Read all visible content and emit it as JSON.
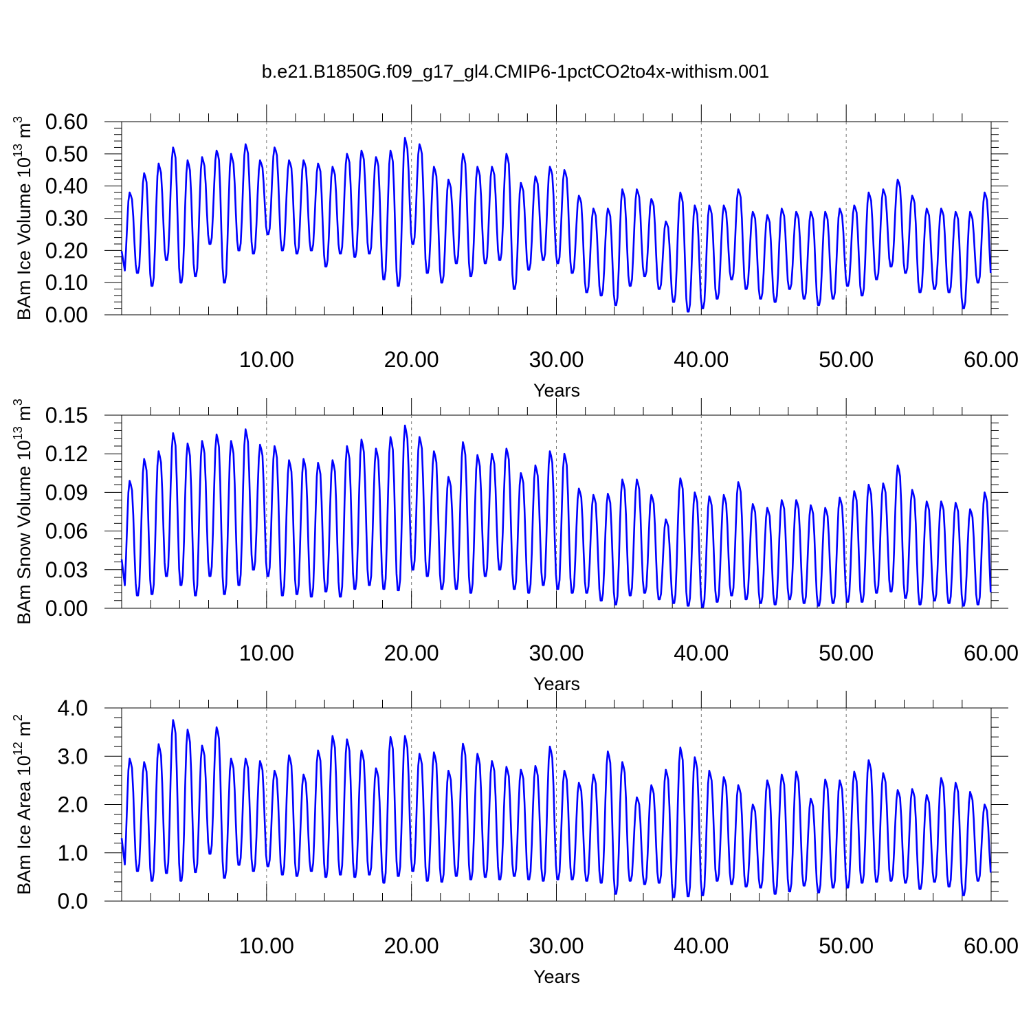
{
  "chart_title": "b.e21.B1850G.f09_g17_gl4.CMIP6-1pctCO2to4x-withism.001",
  "chart_data": [
    {
      "type": "line",
      "title": "b.e21.B1850G.f09_g17_gl4.CMIP6-1pctCO2to4x-withism.001",
      "xlabel": "Years",
      "ylabel": "BAm Ice Volume 10¹³ m³",
      "ylabel_parts": {
        "main": "BAm Ice Volume 10",
        "exp": "13",
        "unit": " m",
        "unit_exp": "3"
      },
      "xlim": [
        0.0,
        60.0
      ],
      "ylim": [
        0.0,
        0.6
      ],
      "xticks": [
        "10.00",
        "20.00",
        "30.00",
        "40.00",
        "50.00",
        "60.00"
      ],
      "yticks": [
        "0.00",
        "0.10",
        "0.20",
        "0.30",
        "0.40",
        "0.50",
        "0.60"
      ],
      "vertical_reference_lines_at": [
        10,
        20,
        30,
        40,
        50
      ],
      "series": [
        {
          "color": "#0000ff",
          "seasonal_cycle_per_year": true,
          "annual_peaks": [
            0.38,
            0.44,
            0.47,
            0.52,
            0.48,
            0.49,
            0.51,
            0.5,
            0.53,
            0.48,
            0.52,
            0.48,
            0.48,
            0.47,
            0.46,
            0.5,
            0.51,
            0.49,
            0.51,
            0.55,
            0.53,
            0.46,
            0.42,
            0.5,
            0.46,
            0.46,
            0.5,
            0.41,
            0.43,
            0.46,
            0.45,
            0.37,
            0.33,
            0.33,
            0.39,
            0.39,
            0.36,
            0.29,
            0.38,
            0.34,
            0.34,
            0.34,
            0.39,
            0.32,
            0.31,
            0.33,
            0.32,
            0.32,
            0.32,
            0.33,
            0.34,
            0.38,
            0.39,
            0.42,
            0.37,
            0.33,
            0.33,
            0.32,
            0.32,
            0.38
          ],
          "annual_troughs": [
            0.12,
            0.13,
            0.09,
            0.17,
            0.1,
            0.12,
            0.22,
            0.1,
            0.2,
            0.19,
            0.25,
            0.2,
            0.19,
            0.2,
            0.15,
            0.19,
            0.18,
            0.19,
            0.11,
            0.09,
            0.22,
            0.13,
            0.1,
            0.16,
            0.12,
            0.16,
            0.17,
            0.08,
            0.14,
            0.17,
            0.16,
            0.13,
            0.07,
            0.06,
            0.03,
            0.09,
            0.12,
            0.08,
            0.04,
            0.01,
            0.02,
            0.05,
            0.11,
            0.08,
            0.05,
            0.04,
            0.08,
            0.05,
            0.03,
            0.05,
            0.09,
            0.06,
            0.11,
            0.15,
            0.13,
            0.07,
            0.08,
            0.07,
            0.02,
            0.1
          ]
        }
      ]
    },
    {
      "type": "line",
      "xlabel": "Years",
      "ylabel": "BAm Snow Volume 10¹³ m³",
      "ylabel_parts": {
        "main": "BAm Snow Volume 10",
        "exp": "13",
        "unit": " m",
        "unit_exp": "3"
      },
      "xlim": [
        0.0,
        60.0
      ],
      "ylim": [
        0.0,
        0.15
      ],
      "xticks": [
        "10.00",
        "20.00",
        "30.00",
        "40.00",
        "50.00",
        "60.00"
      ],
      "yticks": [
        "0.00",
        "0.03",
        "0.06",
        "0.09",
        "0.12",
        "0.15"
      ],
      "vertical_reference_lines_at": [
        10,
        20,
        30,
        40,
        50
      ],
      "series": [
        {
          "color": "#0000ff",
          "seasonal_cycle_per_year": true,
          "annual_peaks": [
            0.099,
            0.116,
            0.122,
            0.136,
            0.128,
            0.13,
            0.135,
            0.13,
            0.139,
            0.127,
            0.126,
            0.115,
            0.116,
            0.113,
            0.115,
            0.126,
            0.131,
            0.124,
            0.133,
            0.142,
            0.133,
            0.122,
            0.102,
            0.129,
            0.119,
            0.12,
            0.124,
            0.105,
            0.111,
            0.122,
            0.12,
            0.093,
            0.088,
            0.089,
            0.1,
            0.1,
            0.088,
            0.069,
            0.101,
            0.09,
            0.087,
            0.088,
            0.098,
            0.081,
            0.078,
            0.084,
            0.084,
            0.08,
            0.078,
            0.086,
            0.091,
            0.096,
            0.097,
            0.111,
            0.092,
            0.083,
            0.083,
            0.082,
            0.077,
            0.09
          ],
          "annual_troughs": [
            0.012,
            0.01,
            0.011,
            0.025,
            0.018,
            0.01,
            0.025,
            0.011,
            0.018,
            0.03,
            0.025,
            0.01,
            0.011,
            0.009,
            0.013,
            0.009,
            0.015,
            0.018,
            0.015,
            0.014,
            0.03,
            0.025,
            0.015,
            0.015,
            0.012,
            0.025,
            0.03,
            0.015,
            0.012,
            0.018,
            0.015,
            0.012,
            0.012,
            0.006,
            0.003,
            0.01,
            0.012,
            0.007,
            0.004,
            0.002,
            0.001,
            0.005,
            0.01,
            0.007,
            0.004,
            0.003,
            0.007,
            0.004,
            0.002,
            0.004,
            0.005,
            0.005,
            0.012,
            0.013,
            0.008,
            0.003,
            0.006,
            0.004,
            0.002,
            0.003
          ]
        }
      ]
    },
    {
      "type": "line",
      "xlabel": "Years",
      "ylabel": "BAm Ice Area 10¹² m²",
      "ylabel_parts": {
        "main": "BAm Ice Area 10",
        "exp": "12",
        "unit": " m",
        "unit_exp": "2"
      },
      "xlim": [
        0.0,
        60.0
      ],
      "ylim": [
        0.0,
        4.0
      ],
      "xticks": [
        "10.00",
        "20.00",
        "30.00",
        "40.00",
        "50.00",
        "60.00"
      ],
      "yticks": [
        "0.0",
        "1.0",
        "2.0",
        "3.0",
        "4.0"
      ],
      "vertical_reference_lines_at": [
        10,
        20,
        30,
        40,
        50
      ],
      "series": [
        {
          "color": "#0000ff",
          "seasonal_cycle_per_year": true,
          "annual_peaks": [
            2.95,
            2.88,
            3.25,
            3.75,
            3.55,
            3.22,
            3.6,
            2.95,
            2.95,
            2.9,
            2.7,
            3.02,
            2.62,
            3.12,
            3.42,
            3.35,
            3.12,
            2.75,
            3.4,
            3.42,
            3.05,
            3.08,
            2.7,
            3.26,
            3.05,
            2.9,
            2.78,
            2.72,
            2.8,
            3.2,
            2.7,
            2.45,
            2.62,
            3.1,
            2.88,
            2.15,
            2.4,
            2.72,
            3.18,
            2.98,
            2.7,
            2.57,
            2.4,
            2.0,
            2.5,
            2.62,
            2.68,
            2.12,
            2.52,
            2.5,
            2.68,
            2.92,
            2.65,
            2.3,
            2.32,
            2.2,
            2.55,
            2.45,
            2.26,
            2.0
          ],
          "annual_troughs": [
            0.6,
            0.62,
            0.42,
            0.58,
            0.42,
            0.6,
            0.98,
            0.48,
            0.75,
            0.62,
            0.72,
            0.55,
            0.52,
            0.62,
            0.5,
            0.55,
            0.5,
            0.55,
            0.38,
            0.52,
            0.62,
            0.42,
            0.4,
            0.52,
            0.45,
            0.5,
            0.45,
            0.52,
            0.45,
            0.42,
            0.45,
            0.45,
            0.42,
            0.38,
            0.15,
            0.42,
            0.35,
            0.38,
            0.08,
            0.1,
            0.12,
            0.42,
            0.35,
            0.3,
            0.28,
            0.15,
            0.2,
            0.32,
            0.18,
            0.28,
            0.28,
            0.38,
            0.4,
            0.42,
            0.38,
            0.25,
            0.4,
            0.3,
            0.12,
            0.42
          ]
        }
      ]
    }
  ]
}
